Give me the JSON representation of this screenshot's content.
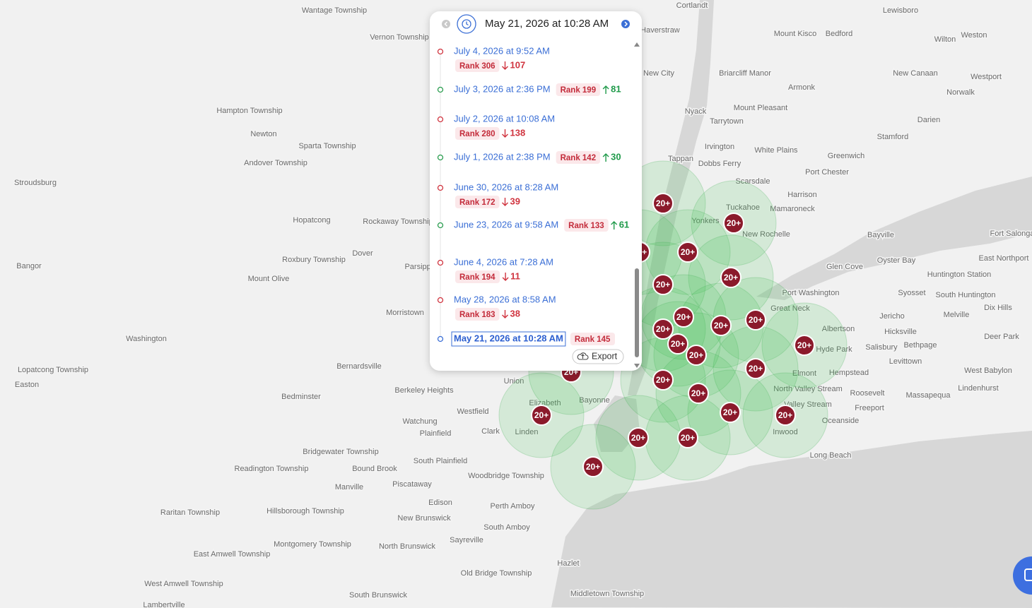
{
  "header": {
    "date": "May 21, 2026 at 10:28 AM"
  },
  "history": [
    {
      "date": "July 4, 2026 at 9:52 AM",
      "rank": "Rank 306",
      "direction": "down",
      "change": 107
    },
    {
      "date": "July 3, 2026 at 2:36 PM",
      "rank": "Rank 199",
      "direction": "up",
      "change": 81
    },
    {
      "date": "July 2, 2026 at 10:08 AM",
      "rank": "Rank 280",
      "direction": "down",
      "change": 138
    },
    {
      "date": "July 1, 2026 at 2:38 PM",
      "rank": "Rank 142",
      "direction": "up",
      "change": 30
    },
    {
      "date": "June 30, 2026 at 8:28 AM",
      "rank": "Rank 172",
      "direction": "down",
      "change": 39
    },
    {
      "date": "June 23, 2026 at 9:58 AM",
      "rank": "Rank 133",
      "direction": "up",
      "change": 61
    },
    {
      "date": "June 4, 2026 at 7:28 AM",
      "rank": "Rank 194",
      "direction": "down",
      "change": 11
    },
    {
      "date": "May 28, 2026 at 8:58 AM",
      "rank": "Rank 183",
      "direction": "down",
      "change": 38
    },
    {
      "date": "May 21, 2026 at 10:28 AM",
      "rank": "Rank 145"
    }
  ],
  "export_label": "Export",
  "cluster_label": "20+",
  "map_labels": [
    "Wantage Township",
    "Vernon Township",
    "Hampton Township",
    "Newton",
    "Sparta Township",
    "Andover Township",
    "Stroudsburg",
    "Hopatcong",
    "Rockaway Township",
    "Roxbury Township",
    "Dover",
    "Parsippany",
    "Bangor",
    "Mount Olive",
    "Morristown",
    "Washington",
    "Lopatcong Township",
    "Easton",
    "Bernardsville",
    "Berkeley Heights",
    "Bedminster",
    "Westfield",
    "Watchung",
    "Plainfield",
    "Clark",
    "Union",
    "Elizabeth",
    "Linden",
    "Bayonne",
    "Bridgewater Township",
    "Readington Township",
    "Bound Brook",
    "South Plainfield",
    "Woodbridge Township",
    "Manville",
    "Piscataway",
    "Edison",
    "Perth Amboy",
    "Hillsborough Township",
    "Raritan Township",
    "New Brunswick",
    "South Amboy",
    "Montgomery Township",
    "Sayreville",
    "North Brunswick",
    "East Amwell Township",
    "Hazlet",
    "Old Bridge Township",
    "West Amwell Township",
    "South Brunswick",
    "Middletown Township",
    "Lambertville",
    "Cortlandt",
    "Lewisboro",
    "West Haverstraw",
    "Mount Kisco",
    "Bedford",
    "Wilton",
    "Weston",
    "New City",
    "Briarcliff Manor",
    "New Canaan",
    "Westport",
    "Armonk",
    "Norwalk",
    "Nyack",
    "Mount Pleasant",
    "Tarrytown",
    "Darien",
    "Stamford",
    "Irvington",
    "White Plains",
    "Greenwich",
    "Tappan",
    "Dobbs Ferry",
    "Port Chester",
    "Scarsdale",
    "Harrison",
    "Tuckahoe",
    "Mamaroneck",
    "Yonkers",
    "New Rochelle",
    "Bayville",
    "Fort Salonga",
    "Glen Cove",
    "Oyster Bay",
    "East Northport",
    "Huntington Station",
    "Port Washington",
    "Syosset",
    "South Huntington",
    "Great Neck",
    "Dix Hills",
    "Jericho",
    "Melville",
    "Albertson",
    "Hicksville",
    "Deer Park",
    "Hyde Park",
    "Salisbury",
    "Bethpage",
    "Levittown",
    "Elmont",
    "Hempstead",
    "West Babylon",
    "North Valley Stream",
    "Roosevelt",
    "Lindenhurst",
    "Massapequa",
    "Valley Stream",
    "Freeport",
    "Oceanside",
    "Inwood",
    "Long Beach"
  ]
}
